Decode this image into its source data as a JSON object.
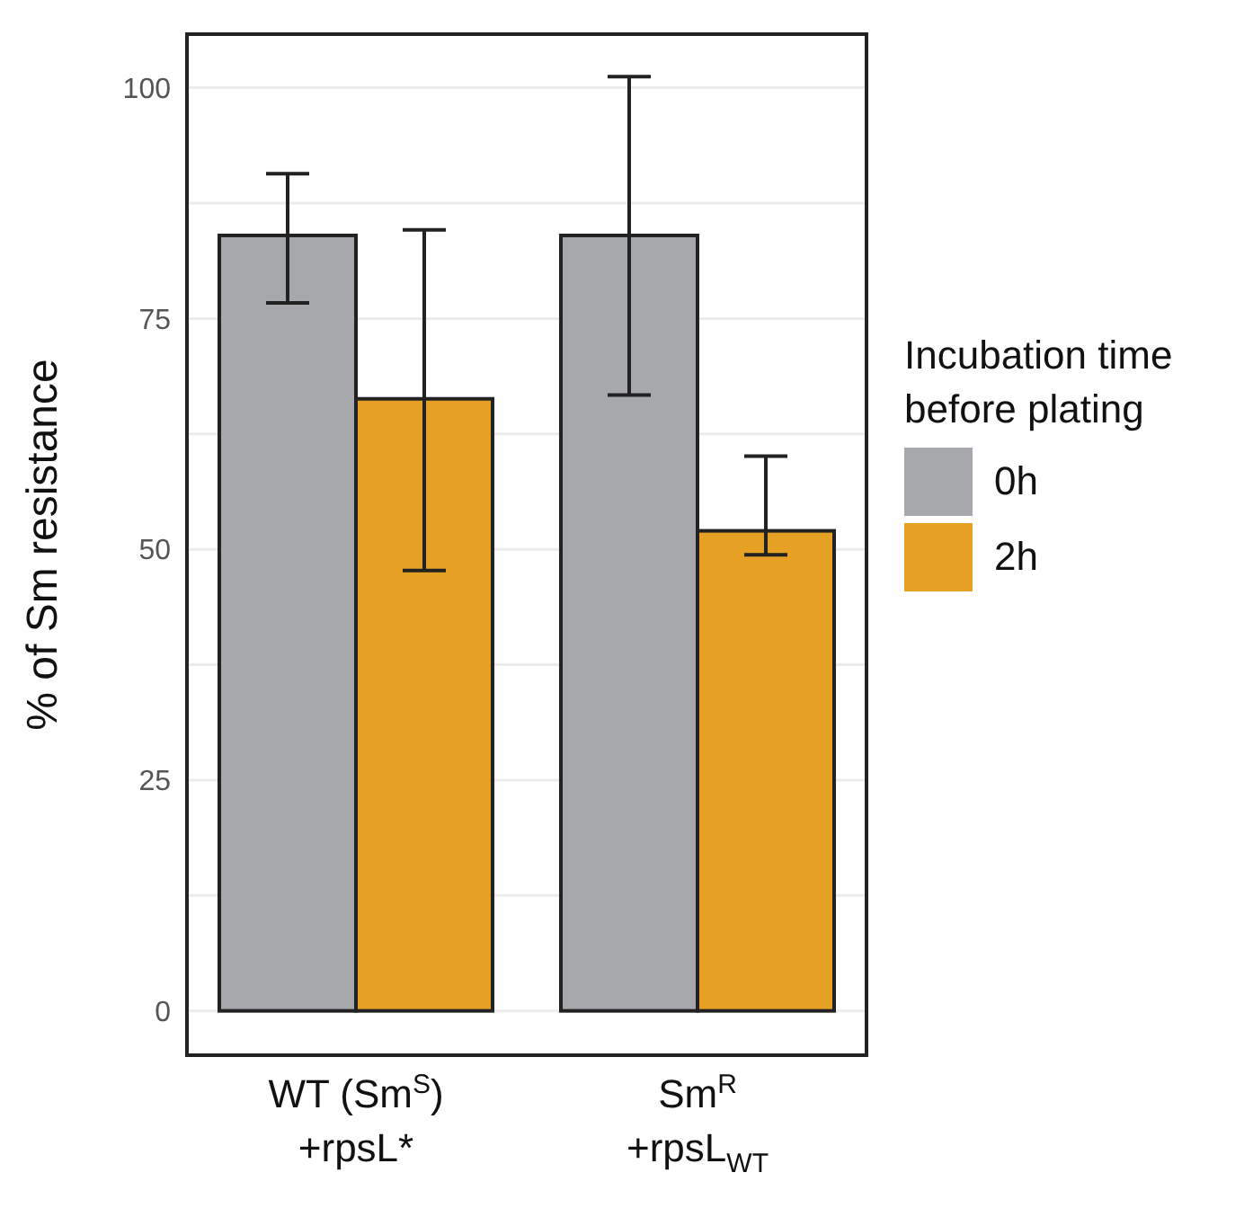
{
  "chart_data": {
    "type": "bar",
    "ylabel": "% of Sm resistance",
    "legend_title": "Incubation time\nbefore plating",
    "categories": [
      "WT (Sm$^{S}$)\n+rpsL*",
      "Sm$^{R}$\n+rpsL$_{WT}$"
    ],
    "series": [
      {
        "name": "0h",
        "color": "#a7a8ac",
        "values": [
          84,
          84
        ],
        "errors": [
          [
            76.7,
            90.7
          ],
          [
            66.7,
            101.2
          ]
        ]
      },
      {
        "name": "2h",
        "color": "#e6a125",
        "values": [
          66.3,
          52
        ],
        "errors": [
          [
            47.7,
            84.6
          ],
          [
            49.4,
            60.1
          ]
        ]
      }
    ],
    "ylim": [
      -5,
      106
    ],
    "yticks": [
      0,
      {
        "value": 12.5,
        "label": null
      },
      25,
      {
        "value": 37.5,
        "label": null
      },
      50,
      {
        "value": 62.5,
        "label": null
      },
      75,
      {
        "value": 87.5,
        "label": null
      },
      100
    ],
    "grid": "y",
    "legend": "right"
  }
}
